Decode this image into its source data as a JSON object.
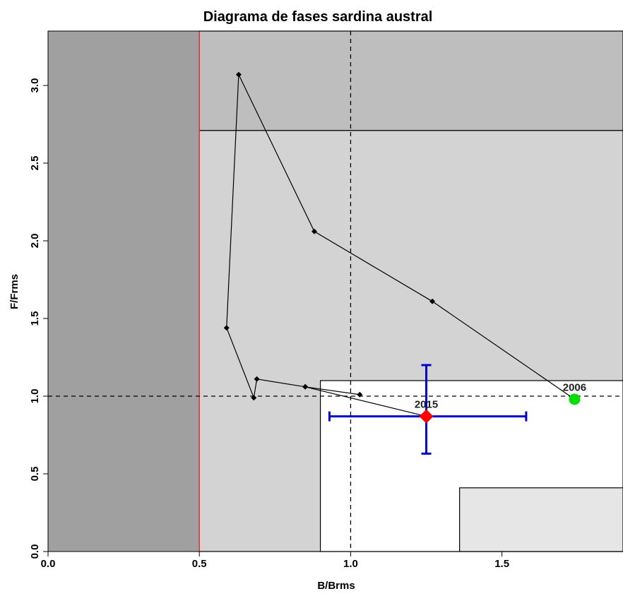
{
  "chart_data": {
    "type": "scatter",
    "title": "Diagrama de fases sardina austral",
    "xlabel": "B/Brms",
    "ylabel": "F/Frms",
    "xlim": [
      0,
      1.9
    ],
    "ylim": [
      0,
      3.35
    ],
    "x_ticks": [
      0.0,
      0.5,
      1.0,
      1.5
    ],
    "x_tick_labels": [
      "0.0",
      "0.5",
      "1.0",
      "1.5"
    ],
    "y_ticks": [
      0.0,
      0.5,
      1.0,
      1.5,
      2.0,
      2.5,
      3.0
    ],
    "y_tick_labels": [
      "0.0",
      "0.5",
      "1.0",
      "1.5",
      "2.0",
      "2.5",
      "3.0"
    ],
    "zones": [
      {
        "x": [
          0,
          0.5
        ],
        "y": [
          0,
          3.35
        ],
        "color": "#a0a0a0"
      },
      {
        "x": [
          0.5,
          1.9
        ],
        "y": [
          2.71,
          3.35
        ],
        "color": "#bebebe"
      },
      {
        "x": [
          0.5,
          1.9
        ],
        "y": [
          0,
          2.71
        ],
        "color": "#d3d3d3"
      },
      {
        "x": [
          0.9,
          1.9
        ],
        "y": [
          0,
          1.1
        ],
        "color": "#ffffff"
      },
      {
        "x": [
          1.36,
          1.9
        ],
        "y": [
          0,
          0.41
        ],
        "color": "#e6e6e6"
      }
    ],
    "reference_lines": [
      {
        "axis": "x",
        "value": 0.5,
        "color": "#ff3030",
        "style": "solid"
      },
      {
        "axis": "x",
        "value": 1.0,
        "color": "#000000",
        "style": "dashed"
      },
      {
        "axis": "y",
        "value": 1.0,
        "color": "#000000",
        "style": "dashed"
      }
    ],
    "series": [
      {
        "x": [
          1.74,
          1.27,
          0.88,
          0.63,
          0.59,
          0.68,
          0.69,
          0.85,
          1.03,
          0.85,
          1.25
        ],
        "y": [
          0.98,
          1.61,
          2.06,
          3.07,
          1.44,
          0.99,
          1.11,
          1.06,
          1.01,
          1.06,
          0.87
        ],
        "color": "#000000"
      }
    ],
    "highlight_points": [
      {
        "label": "2006",
        "x": 1.74,
        "y": 0.98,
        "color": "#00dd00"
      },
      {
        "label": "2015",
        "x": 1.25,
        "y": 0.87,
        "color": "#ff0000"
      }
    ],
    "error_bars": {
      "x": 1.25,
      "y": 0.87,
      "x_range": [
        0.93,
        1.58
      ],
      "y_range": [
        0.63,
        1.2
      ],
      "color": "#0000cc"
    }
  }
}
